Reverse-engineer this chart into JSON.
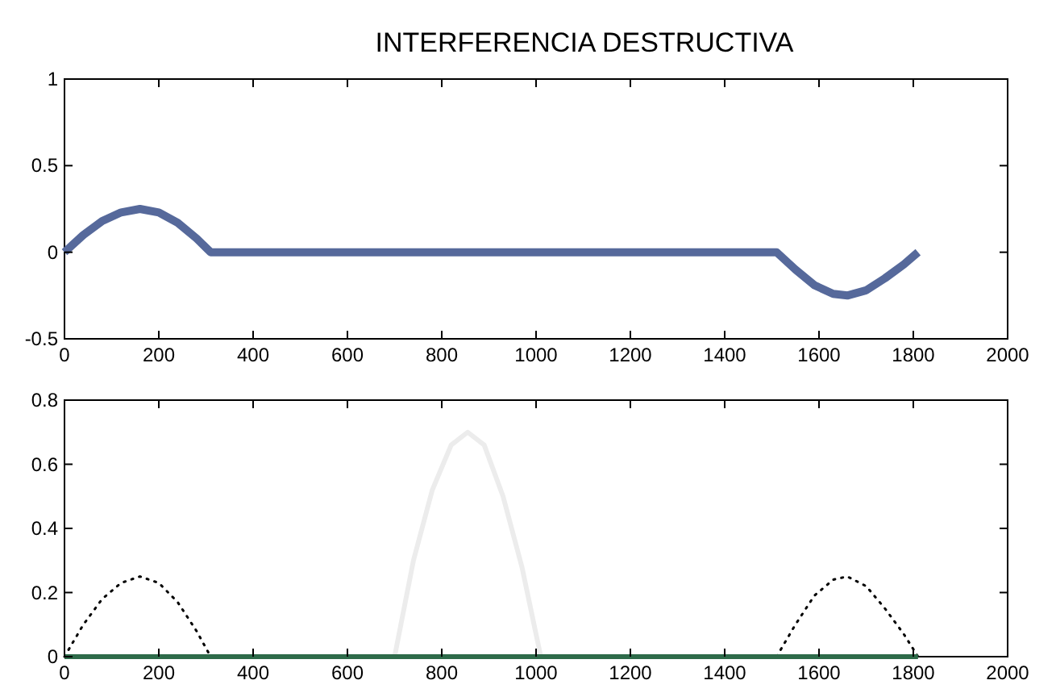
{
  "chart_data": [
    {
      "type": "line",
      "title": "INTERFERENCIA DESTRUCTIVA",
      "xlim": [
        0,
        2000
      ],
      "xticks": [
        0,
        200,
        400,
        600,
        800,
        1000,
        1200,
        1400,
        1600,
        1800,
        2000
      ],
      "ylim": [
        -0.5,
        1
      ],
      "yticks": [
        -0.5,
        0,
        0.5,
        1
      ],
      "grid": false,
      "line_style": "solid",
      "series": [
        {
          "color": "#56699b",
          "x": [
            0,
            40,
            80,
            120,
            160,
            200,
            240,
            280,
            310,
            1510,
            1550,
            1590,
            1630,
            1660,
            1700,
            1740,
            1780,
            1810
          ],
          "values": [
            0,
            0.1,
            0.18,
            0.23,
            0.25,
            0.23,
            0.17,
            0.08,
            0,
            0,
            -0.1,
            -0.19,
            -0.24,
            -0.25,
            -0.22,
            -0.15,
            -0.07,
            0
          ]
        }
      ]
    },
    {
      "type": "line",
      "xlim": [
        0,
        2000
      ],
      "xticks": [
        0,
        200,
        400,
        600,
        800,
        1000,
        1200,
        1400,
        1600,
        1800,
        2000
      ],
      "ylim": [
        0,
        0.8
      ],
      "yticks": [
        0,
        0.2,
        0.4,
        0.6,
        0.8
      ],
      "grid": false,
      "series": [
        {
          "color": "#000000",
          "line_style": "dotted",
          "x": [
            0,
            40,
            80,
            120,
            160,
            200,
            240,
            280,
            310
          ],
          "values": [
            0,
            0.1,
            0.18,
            0.23,
            0.25,
            0.23,
            0.17,
            0.08,
            0
          ]
        },
        {
          "color": "#000000",
          "line_style": "dotted",
          "x": [
            1510,
            1550,
            1590,
            1630,
            1660,
            1700,
            1740,
            1780,
            1810
          ],
          "values": [
            0,
            0.1,
            0.19,
            0.24,
            0.25,
            0.22,
            0.15,
            0.07,
            0
          ]
        },
        {
          "color": "#ececec",
          "line_style": "solid",
          "x": [
            700,
            740,
            780,
            820,
            855,
            890,
            930,
            970,
            1010
          ],
          "values": [
            0,
            0.3,
            0.52,
            0.66,
            0.7,
            0.66,
            0.5,
            0.28,
            0
          ]
        },
        {
          "color": "#2e6b4a",
          "line_style": "solid",
          "x": [
            0,
            1810
          ],
          "values": [
            0,
            0
          ]
        }
      ]
    }
  ]
}
